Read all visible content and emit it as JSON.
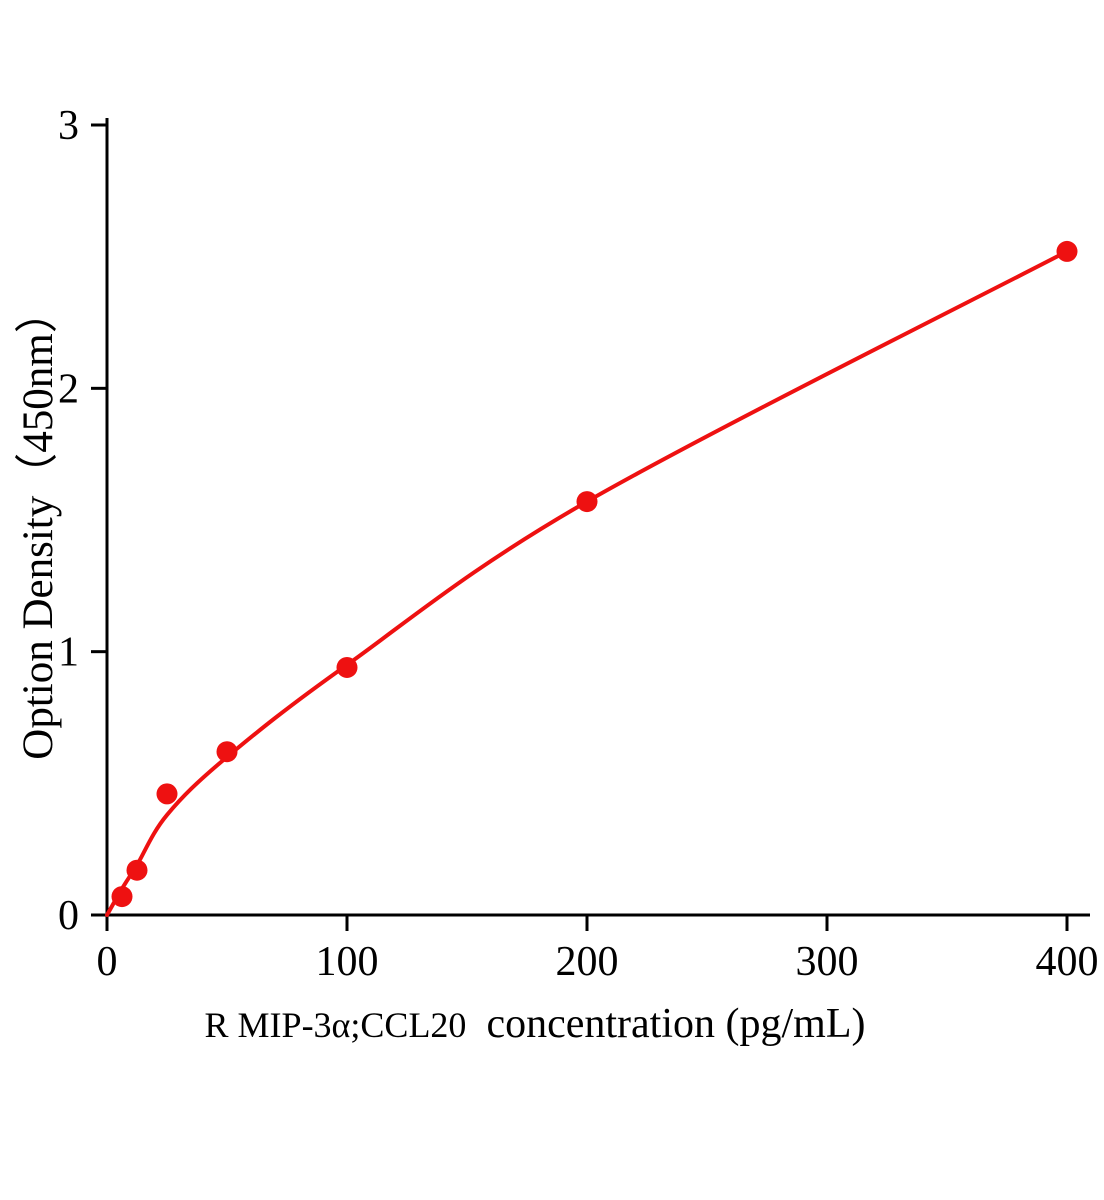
{
  "colors": {
    "accent": "#ee1111",
    "axis": "#000000",
    "background": "#ffffff"
  },
  "chart_data": {
    "type": "scatter",
    "title": "",
    "xlabel": "R MIP-3α;CCL20 concentration (pg/mL)",
    "xlabel_part1": "R MIP-3α;CCL20",
    "xlabel_part2": "concentration (pg/mL)",
    "ylabel": "Option Density（450nm）",
    "x": [
      6.25,
      12.5,
      25,
      50,
      100,
      200,
      400
    ],
    "y": [
      0.07,
      0.17,
      0.46,
      0.62,
      0.94,
      1.57,
      2.52
    ],
    "curve": {
      "x": [
        0,
        6.25,
        12.5,
        25,
        50,
        100,
        200,
        400
      ],
      "y": [
        0,
        0.1,
        0.19,
        0.38,
        0.6,
        0.95,
        1.57,
        2.52
      ]
    },
    "x_ticks": [
      0,
      100,
      200,
      300,
      400
    ],
    "y_ticks": [
      0,
      1,
      2,
      3
    ],
    "xlim": [
      0,
      400
    ],
    "ylim": [
      0,
      3
    ],
    "grid": false,
    "legend_position": "none",
    "marker": "circle",
    "line_color": "#ee1111",
    "marker_color": "#ee1111"
  }
}
